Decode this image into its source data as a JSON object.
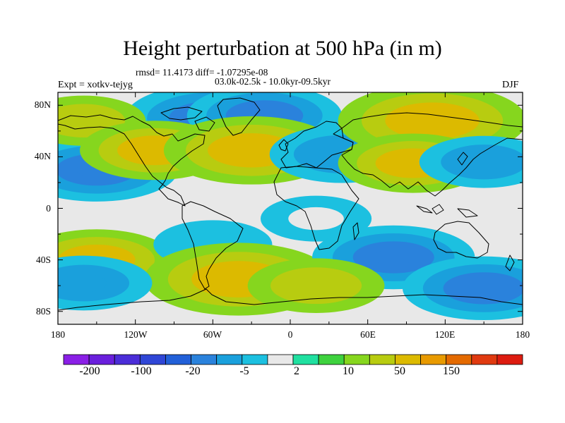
{
  "header": {
    "title": "Height perturbation at 500 hPa (in m)",
    "stats": "rmsd= 11.4173 diff= -1.07295e-08",
    "period": "03.0k-02.5k - 10.0kyr-09.5kyr",
    "experiment": "Expt = xotkv-tejyg",
    "season": "DJF"
  },
  "axes": {
    "x_ticks": [
      "180",
      "120W",
      "60W",
      "0",
      "60E",
      "120E",
      "180"
    ],
    "y_ticks": [
      "80N",
      "40N",
      "0",
      "40S",
      "80S"
    ]
  },
  "colorbar": {
    "colors": [
      "#8a1fe6",
      "#6a1fdc",
      "#4b2dd8",
      "#2f46d6",
      "#2260d8",
      "#2a82dc",
      "#1aa0dc",
      "#1cc0e0",
      "#e8e8e8",
      "#20e0a0",
      "#3ed23e",
      "#86d61e",
      "#b8cc10",
      "#dcba00",
      "#e89a00",
      "#e46a00",
      "#e03a10",
      "#dd1c10"
    ],
    "tick_labels": [
      "-200",
      "-100",
      "-20",
      "-5",
      "2",
      "10",
      "50",
      "150"
    ]
  },
  "chart_data": {
    "type": "heatmap",
    "title": "Height perturbation at 500 hPa (in m)",
    "subtitle": "03.0k-02.5k - 10.0kyr-09.5kyr",
    "rmsd": 11.4173,
    "diff": -1.07295e-08,
    "season": "DJF",
    "experiment": "xotkv-tejyg",
    "xlim": [
      -180,
      180
    ],
    "ylim": [
      -90,
      90
    ],
    "features": [
      {
        "lon": -60,
        "lat": 70,
        "value": -30
      },
      {
        "lon": -20,
        "lat": 72,
        "value": -22
      },
      {
        "lon": -150,
        "lat": 30,
        "value": -25
      },
      {
        "lon": -160,
        "lat": 68,
        "value": 10
      },
      {
        "lon": -105,
        "lat": 45,
        "value": 20
      },
      {
        "lon": -30,
        "lat": 45,
        "value": 30
      },
      {
        "lon": 40,
        "lat": 42,
        "value": -18
      },
      {
        "lon": 110,
        "lat": 68,
        "value": 35
      },
      {
        "lon": 95,
        "lat": 35,
        "value": 20
      },
      {
        "lon": 150,
        "lat": 36,
        "value": -12
      },
      {
        "lon": -150,
        "lat": -40,
        "value": 22
      },
      {
        "lon": -60,
        "lat": -28,
        "value": -8
      },
      {
        "lon": -40,
        "lat": -55,
        "value": 35
      },
      {
        "lon": 20,
        "lat": -8,
        "value": -5
      },
      {
        "lon": 80,
        "lat": -38,
        "value": -25
      },
      {
        "lon": 150,
        "lat": -62,
        "value": -25
      },
      {
        "lon": -160,
        "lat": -58,
        "value": -15
      },
      {
        "lon": 20,
        "lat": -60,
        "value": 15
      }
    ]
  }
}
